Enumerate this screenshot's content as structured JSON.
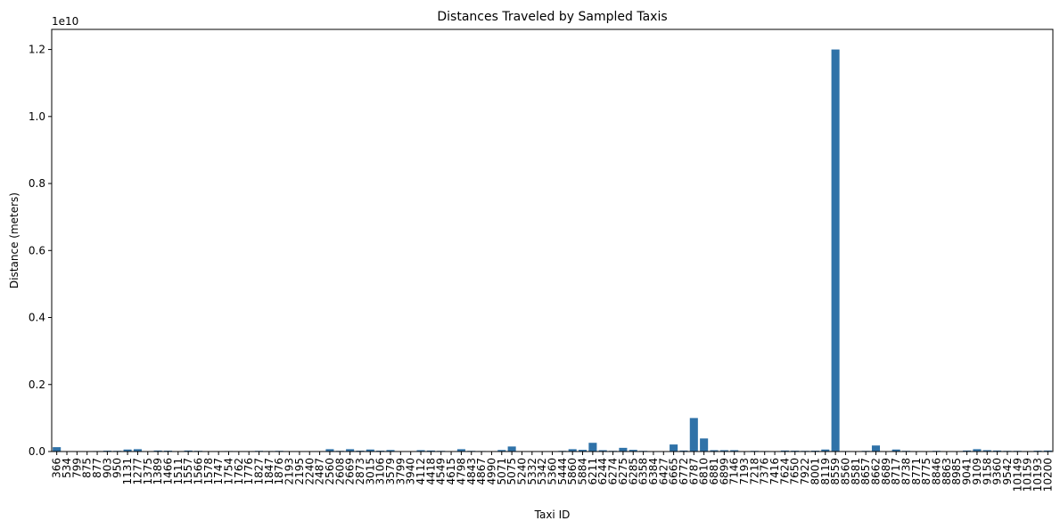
{
  "chart_data": {
    "type": "bar",
    "title": "Distances Traveled by Sampled Taxis",
    "xlabel": "Taxi ID",
    "ylabel": "Distance (meters)",
    "y_offset_label": "1e10",
    "ylim": [
      0,
      12600000000.0
    ],
    "yticks": [
      {
        "value": 0,
        "label": "0.0"
      },
      {
        "value": 2000000000,
        "label": "0.2"
      },
      {
        "value": 4000000000,
        "label": "0.4"
      },
      {
        "value": 6000000000,
        "label": "0.6"
      },
      {
        "value": 8000000000,
        "label": "0.8"
      },
      {
        "value": 10000000000,
        "label": "1.0"
      },
      {
        "value": 12000000000,
        "label": "1.2"
      }
    ],
    "grid": false,
    "bar_color": "#2f72a8",
    "categories": [
      "366",
      "534",
      "799",
      "875",
      "877",
      "903",
      "950",
      "1131",
      "1277",
      "1375",
      "1389",
      "1466",
      "1511",
      "1557",
      "1566",
      "1578",
      "1747",
      "1754",
      "1762",
      "1776",
      "1827",
      "1847",
      "1876",
      "2193",
      "2195",
      "2240",
      "2487",
      "2560",
      "2608",
      "2669",
      "2873",
      "3015",
      "3106",
      "3579",
      "3799",
      "3940",
      "4112",
      "4418",
      "4549",
      "4615",
      "4798",
      "4843",
      "4867",
      "4990",
      "5071",
      "5075",
      "5240",
      "5332",
      "5342",
      "5360",
      "5444",
      "5860",
      "5884",
      "6211",
      "6244",
      "6274",
      "6275",
      "6285",
      "6358",
      "6384",
      "6427",
      "6665",
      "6772",
      "6787",
      "6810",
      "6881",
      "6899",
      "7146",
      "7193",
      "7218",
      "7376",
      "7416",
      "7624",
      "7650",
      "7922",
      "8001",
      "8119",
      "8559",
      "8560",
      "8581",
      "8657",
      "8662",
      "8689",
      "8717",
      "8738",
      "8771",
      "8775",
      "8846",
      "8863",
      "8985",
      "9041",
      "9109",
      "9158",
      "9360",
      "9542",
      "10149",
      "10159",
      "10193",
      "10200"
    ],
    "values": [
      130000000,
      10000000,
      0,
      0,
      15000000,
      25000000,
      20000000,
      60000000,
      70000000,
      0,
      30000000,
      25000000,
      10000000,
      30000000,
      20000000,
      0,
      0,
      15000000,
      0,
      0,
      20000000,
      15000000,
      20000000,
      0,
      0,
      0,
      0,
      70000000,
      20000000,
      70000000,
      25000000,
      60000000,
      25000000,
      45000000,
      0,
      0,
      40000000,
      30000000,
      20000000,
      0,
      70000000,
      20000000,
      15000000,
      0,
      45000000,
      150000000,
      0,
      0,
      0,
      0,
      20000000,
      70000000,
      50000000,
      260000000,
      40000000,
      20000000,
      110000000,
      50000000,
      20000000,
      0,
      0,
      210000000,
      30000000,
      1000000000,
      390000000,
      40000000,
      40000000,
      40000000,
      10000000,
      20000000,
      15000000,
      0,
      30000000,
      25000000,
      20000000,
      25000000,
      60000000,
      12000000000,
      15000000,
      0,
      20000000,
      180000000,
      0,
      60000000,
      20000000,
      10000000,
      0,
      20000000,
      0,
      0,
      30000000,
      70000000,
      40000000,
      30000000,
      20000000,
      20000000,
      15000000,
      25000000,
      30000000
    ]
  }
}
